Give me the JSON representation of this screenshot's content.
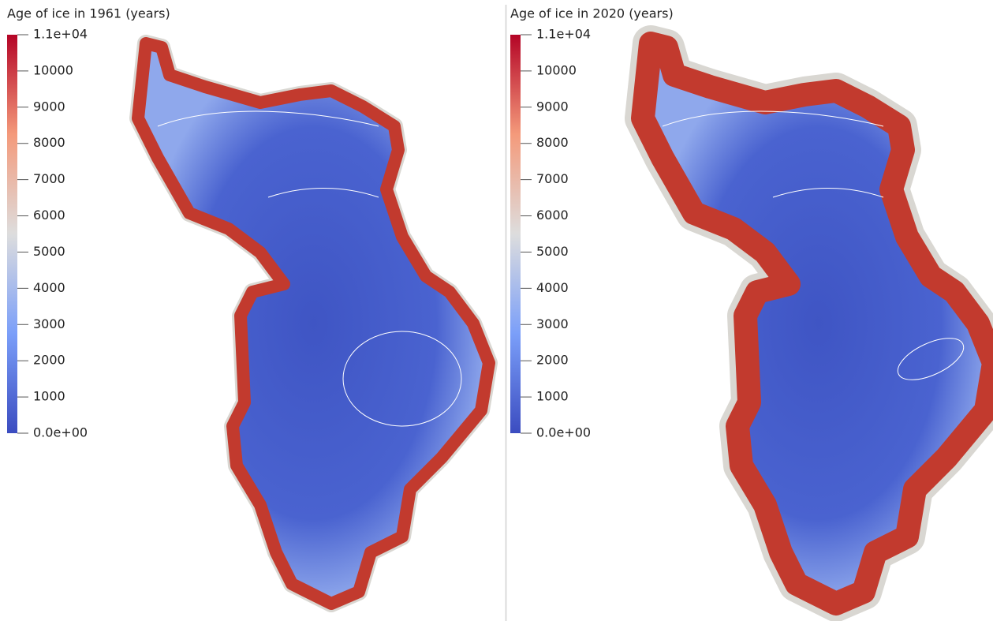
{
  "panels": [
    {
      "title": "Age of ice in 1961 (years)",
      "colorbar": {
        "range": [
          0,
          11000
        ],
        "ticks": [
          {
            "value": 0,
            "label": "0.0e+00"
          },
          1000,
          2000,
          3000,
          4000,
          5000,
          6000,
          7000,
          8000,
          9000,
          10000,
          {
            "value": 11000,
            "label": "1.1e+04"
          }
        ]
      }
    },
    {
      "title": "Age of ice in 2020 (years)",
      "colorbar": {
        "range": [
          0,
          11000
        ],
        "ticks": [
          {
            "value": 0,
            "label": "0.0e+00"
          },
          1000,
          2000,
          3000,
          4000,
          5000,
          6000,
          7000,
          8000,
          9000,
          10000,
          {
            "value": 11000,
            "label": "1.1e+04"
          }
        ]
      }
    }
  ]
}
